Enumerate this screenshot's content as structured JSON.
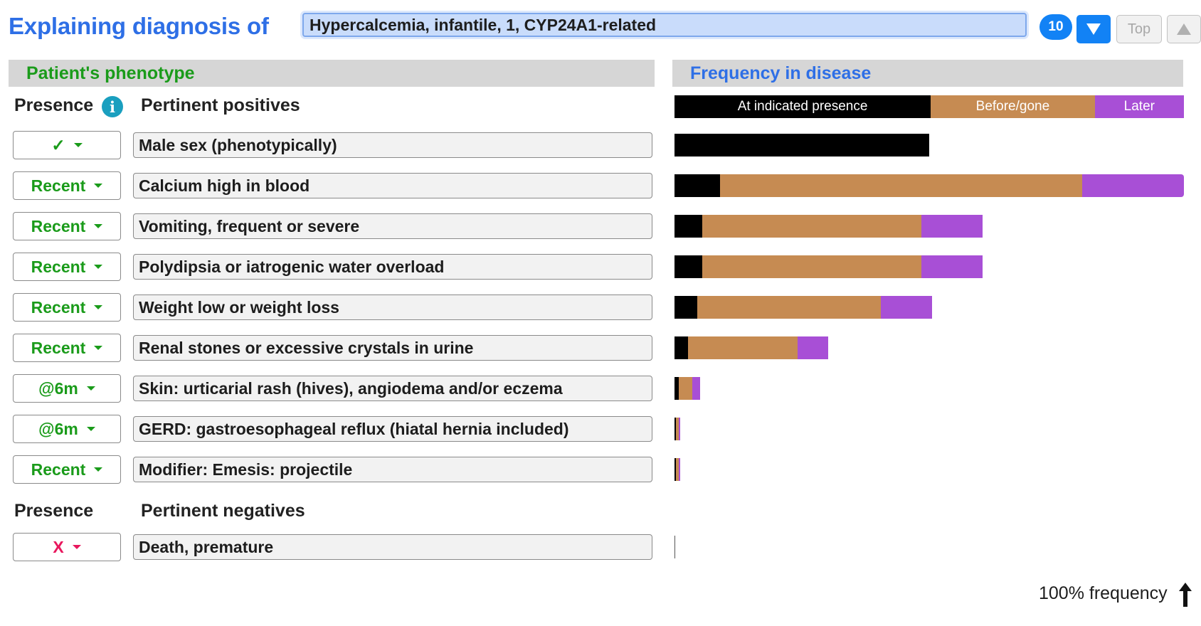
{
  "header": {
    "title": "Explaining diagnosis of",
    "diagnosis_value": "Hypercalcemia, infantile, 1, CYP24A1-related",
    "result_count": "10",
    "top_label": "Top"
  },
  "sections": {
    "phenotype_title": "Patient's phenotype",
    "frequency_title": "Frequency in disease"
  },
  "columns": {
    "presence": "Presence",
    "pertinent_positives": "Pertinent positives",
    "pertinent_negatives": "Pertinent negatives"
  },
  "legend": [
    {
      "label": "At indicated presence",
      "color": "#000000",
      "width_pct": 50.3
    },
    {
      "label": "Before/gone",
      "color": "#c68b52",
      "width_pct": 32.2
    },
    {
      "label": "Later",
      "color": "#a84fd6",
      "width_pct": 17.5
    }
  ],
  "positives": [
    {
      "presence": "✓",
      "presence_color": "#1a9b1a",
      "label": "Male sex (phenotypically)",
      "freq": [
        0.5,
        0.0,
        0.0
      ]
    },
    {
      "presence": "Recent",
      "presence_color": "#1a9b1a",
      "label": "Calcium high in blood",
      "freq": [
        0.09,
        0.71,
        0.2
      ]
    },
    {
      "presence": "Recent",
      "presence_color": "#1a9b1a",
      "label": "Vomiting, frequent or severe",
      "freq": [
        0.055,
        0.43,
        0.12
      ]
    },
    {
      "presence": "Recent",
      "presence_color": "#1a9b1a",
      "label": "Polydipsia or iatrogenic water overload",
      "freq": [
        0.055,
        0.43,
        0.12
      ]
    },
    {
      "presence": "Recent",
      "presence_color": "#1a9b1a",
      "label": "Weight low or weight loss",
      "freq": [
        0.045,
        0.36,
        0.1
      ]
    },
    {
      "presence": "Recent",
      "presence_color": "#1a9b1a",
      "label": "Renal stones or excessive crystals in urine",
      "freq": [
        0.027,
        0.214,
        0.06
      ]
    },
    {
      "presence": "@6m",
      "presence_color": "#1a9b1a",
      "label": "Skin: urticarial rash (hives), angiodema and/or eczema",
      "freq": [
        0.008,
        0.027,
        0.015
      ]
    },
    {
      "presence": "@6m",
      "presence_color": "#1a9b1a",
      "label": "GERD: gastroesophageal reflux (hiatal hernia included)",
      "freq": [
        0.002,
        0.006,
        0.003
      ]
    },
    {
      "presence": "Recent",
      "presence_color": "#1a9b1a",
      "label": "Modifier: Emesis: projectile",
      "freq": [
        0.002,
        0.006,
        0.003
      ]
    }
  ],
  "negatives": [
    {
      "presence": "X",
      "presence_color": "#e8175d",
      "label": "Death, premature",
      "freq": [
        0.0,
        0.0,
        0.0
      ]
    }
  ],
  "frequency_scale_note": "100% frequency"
}
